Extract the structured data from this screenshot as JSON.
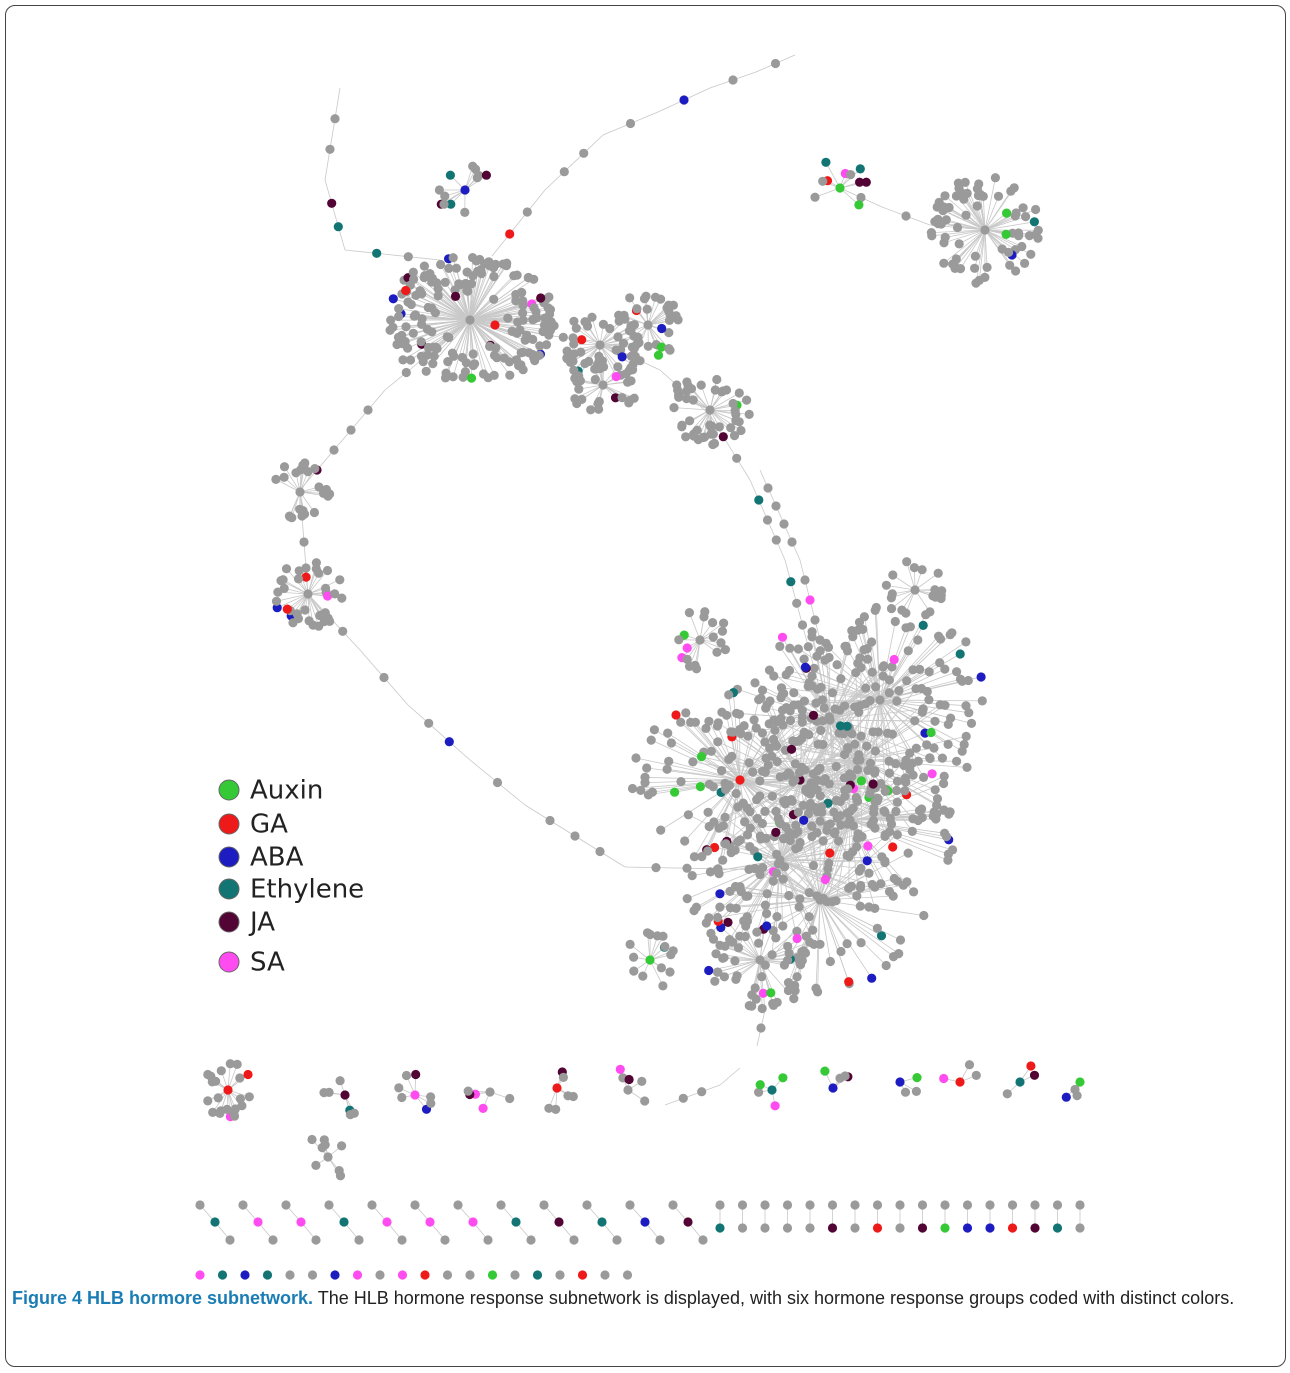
{
  "legend": {
    "items": [
      {
        "label": "Auxin",
        "color": "#35c935"
      },
      {
        "label": "GA",
        "color": "#ee1a1a"
      },
      {
        "label": "ABA",
        "color": "#1c1cc0"
      },
      {
        "label": "Ethylene",
        "color": "#137474"
      },
      {
        "label": "JA",
        "color": "#520434"
      },
      {
        "label": "SA",
        "color": "#ff4cf0"
      }
    ]
  },
  "caption": {
    "title": "Figure 4 HLB hormore subnetwork.",
    "text": "The HLB hormone response subnetwork is displayed, with six hormone response groups coded with distinct colors."
  }
}
